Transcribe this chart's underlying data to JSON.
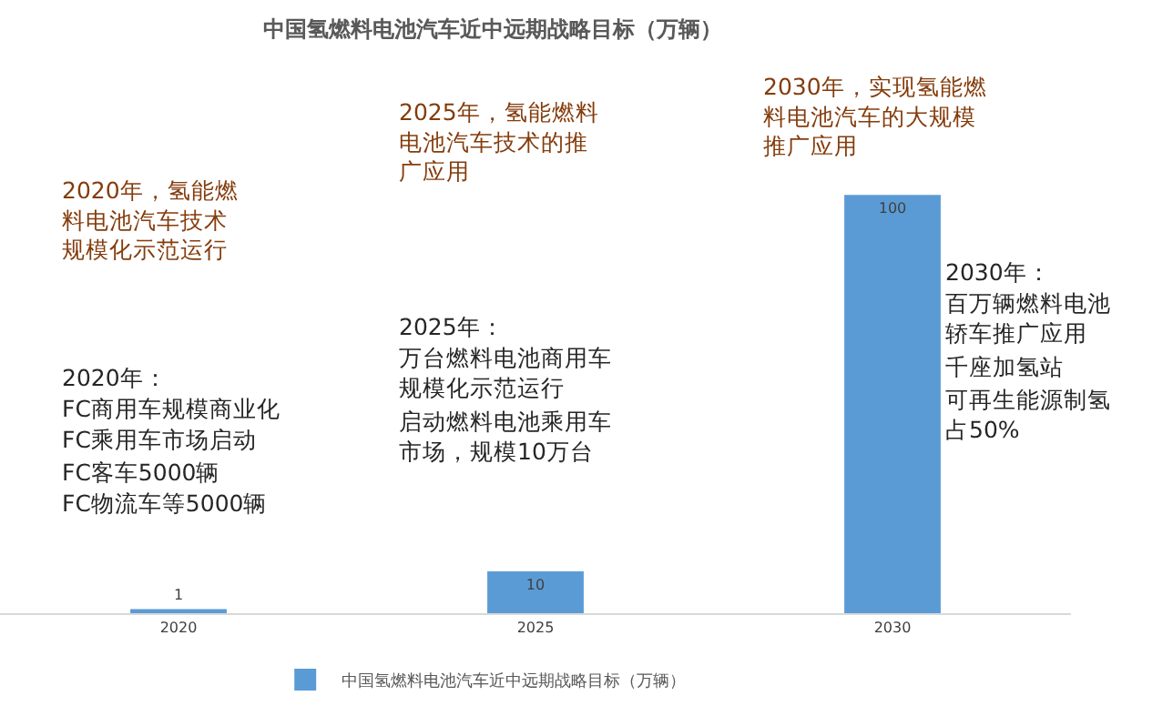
{
  "chart_data": {
    "type": "bar",
    "title": "中国氢燃料电池汽车近中远期战略目标（万辆）",
    "categories": [
      "2020",
      "2025",
      "2030"
    ],
    "series": [
      {
        "name": "中国氢燃料电池汽车近中远期战略目标（万辆）",
        "color": "#5b9bd5",
        "values": [
          1,
          10,
          100
        ]
      }
    ],
    "data_labels": true,
    "legend": "bottom",
    "annotations": [
      "2020年，氢能燃料电池汽车技术规模化示范运行",
      "2020年：",
      "FC商用车规模商业化",
      "FC乘用车市场启动",
      "FC客车5000辆",
      "FC物流车等5000辆",
      "2025年，氢能燃料电池汽车技术的推广应用",
      "2025年：",
      "万台燃料电池商用车规模化示范运行",
      "启动燃料电池乘用车市场，规模10万台",
      "2030年，实现氢能燃料电池汽车的大规模推广应用",
      "2030年：",
      "百万辆燃料电池轿车推广应用",
      "千座加氢站",
      "可再生能源制氢占50%"
    ]
  }
}
